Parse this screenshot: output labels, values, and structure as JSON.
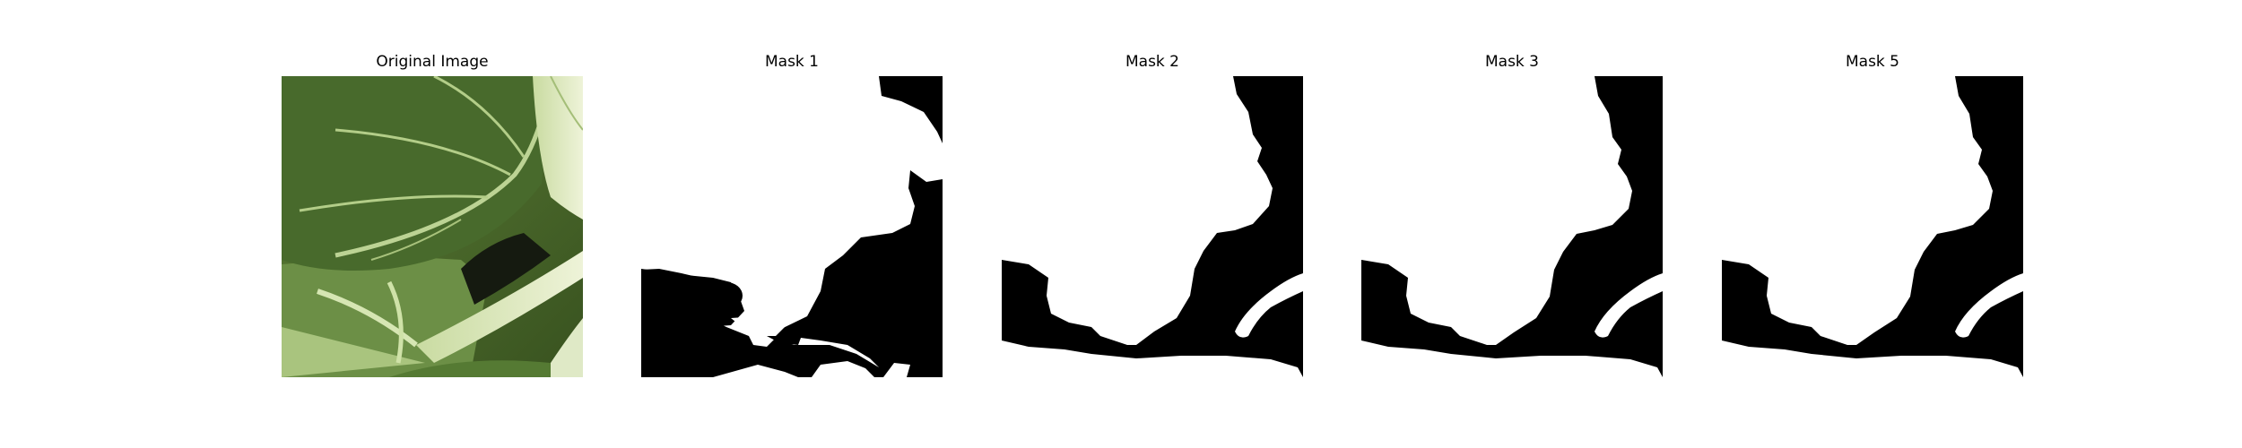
{
  "panels": [
    {
      "title": "Original Image"
    },
    {
      "title": "Mask 1"
    },
    {
      "title": "Mask 2"
    },
    {
      "title": "Mask 3"
    },
    {
      "title": "Mask 5"
    }
  ],
  "colors": {
    "mask_foreground": "#ffffff",
    "mask_background": "#000000",
    "leaf_dark": "#3f5f2a",
    "leaf_vein": "#c8dca0"
  }
}
